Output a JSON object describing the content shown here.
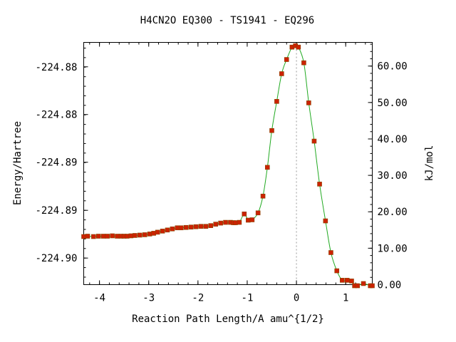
{
  "chart_data": {
    "type": "line",
    "title": "H4CN2O   EQ300 - TS1941 - EQ296",
    "xlabel": "Reaction Path Length/A amu^{1/2}",
    "ylabel_left": "Energy/Hartree",
    "ylabel_right": "kJ/mol",
    "xlim": [
      -4.32,
      1.54
    ],
    "ylim_right": [
      0.0,
      66.5
    ],
    "x_ticks": [
      -4,
      -3,
      -2,
      -1,
      0,
      1
    ],
    "x_tick_labels": [
      "-4",
      "-3",
      "-2",
      "-1",
      "0",
      "1"
    ],
    "left_ticks_kj": [
      59.8,
      46.7,
      33.6,
      20.4,
      7.3
    ],
    "left_tick_labels": [
      "-224.88",
      "-224.88",
      "-224.89",
      "-224.89",
      "-224.90"
    ],
    "right_ticks": [
      0,
      10,
      20,
      30,
      40,
      50,
      60
    ],
    "right_tick_labels": [
      "0.00",
      "10.00",
      "20.00",
      "30.00",
      "40.00",
      "50.00",
      "60.00"
    ],
    "ts_line_x": 0.0,
    "grid": false,
    "colors": {
      "curve": "#22aa22",
      "points": "#cc2200",
      "ts_line": "#999999"
    },
    "series": [
      {
        "x": [
          -4.32,
          -4.24,
          -4.12,
          -4.02,
          -3.92,
          -3.84,
          -3.74,
          -3.64,
          -3.56,
          -3.5,
          -3.44,
          -3.36,
          -3.28,
          -3.18,
          -3.08,
          -2.98,
          -2.9,
          -2.82,
          -2.72,
          -2.62,
          -2.52,
          -2.42,
          -2.34,
          -2.24,
          -2.14,
          -2.04,
          -1.94,
          -1.84,
          -1.74,
          -1.64,
          -1.54,
          -1.44,
          -1.34,
          -1.28,
          -1.24,
          -1.16,
          -1.06,
          -0.98,
          -0.9,
          -0.78,
          -0.68,
          -0.59,
          -0.5,
          -0.4,
          -0.3,
          -0.2,
          -0.09,
          -0.02,
          0.04,
          0.15,
          0.25,
          0.36,
          0.47,
          0.59,
          0.7,
          0.82,
          0.93,
          1.03,
          1.12,
          1.18,
          1.24,
          1.36,
          1.5,
          1.54
        ],
        "y": [
          13.2,
          13.3,
          13.2,
          13.3,
          13.3,
          13.3,
          13.4,
          13.3,
          13.3,
          13.3,
          13.3,
          13.4,
          13.5,
          13.6,
          13.7,
          13.9,
          14.1,
          14.4,
          14.7,
          15.0,
          15.3,
          15.6,
          15.6,
          15.7,
          15.8,
          15.9,
          16.0,
          16.0,
          16.2,
          16.6,
          16.9,
          17.1,
          17.1,
          17.0,
          17.0,
          17.1,
          19.4,
          17.7,
          17.8,
          19.7,
          24.3,
          32.2,
          42.3,
          50.3,
          57.9,
          61.8,
          65.2,
          65.6,
          65.2,
          60.9,
          49.9,
          39.4,
          27.6,
          17.5,
          8.8,
          3.8,
          1.2,
          1.2,
          1.0,
          -0.3,
          -0.3,
          0.3,
          -0.3,
          -0.3
        ]
      }
    ]
  }
}
